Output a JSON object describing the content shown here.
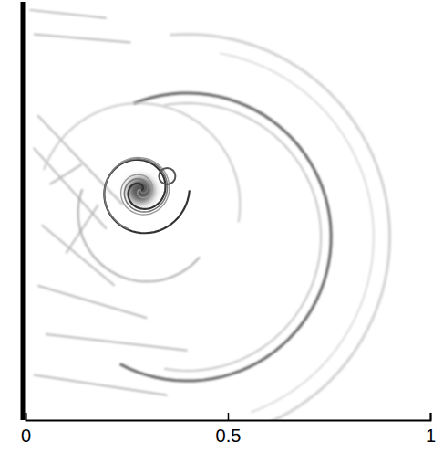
{
  "chart_data": {
    "type": "schlieren",
    "xlim": [
      0,
      1
    ],
    "xticks": [
      0,
      0.5,
      1
    ]
  }
}
